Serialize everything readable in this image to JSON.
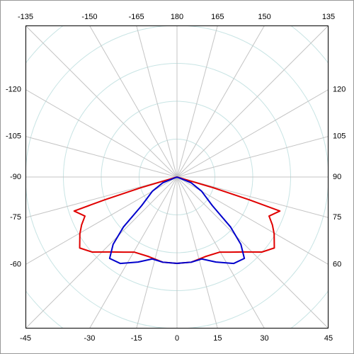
{
  "chart_data": {
    "type": "polar",
    "rlim": [
      0,
      400
    ],
    "rticks": [
      100,
      200,
      300,
      400,
      500
    ],
    "thetaticks": [
      -165,
      -150,
      -135,
      -120,
      -105,
      -90,
      -75,
      -60,
      -45,
      -30,
      -15,
      0,
      15,
      30,
      45,
      60,
      75,
      90,
      105,
      120,
      135,
      150,
      165,
      180
    ],
    "grid": true,
    "series": [
      {
        "color": "#e00000",
        "x": [
          -90,
          -73.5,
          -72.5,
          -71.7,
          -67,
          -63.3,
          -59.7,
          -53.9,
          -48.5,
          -41.9,
          -35.3,
          -29.5,
          -19.6,
          -9.5,
          0,
          9.5,
          19.6,
          29.5,
          35.3,
          41.9,
          48.5,
          53.9,
          59.7,
          63.3,
          67,
          71.7,
          72.5,
          73.5,
          90
        ],
        "values": [
          0,
          100,
          200,
          286,
          264,
          282,
          297,
          318,
          299,
          266,
          243,
          228,
          223,
          228,
          228,
          228,
          223,
          228,
          243,
          266,
          299,
          318,
          297,
          282,
          264,
          286,
          200,
          100,
          0
        ]
      },
      {
        "color": "#0000cc",
        "x": [
          -90,
          -68,
          -60,
          -51,
          -47,
          -43.5,
          -39.6,
          -33.3,
          -24.6,
          -16.8,
          -9.5,
          0,
          9.5,
          16.8,
          24.6,
          33.3,
          39.6,
          43.5,
          47,
          51,
          60,
          68,
          90
        ],
        "values": [
          0,
          40,
          75,
          120,
          193,
          245,
          279,
          273,
          247,
          226,
          228,
          228,
          228,
          226,
          247,
          273,
          279,
          245,
          193,
          120,
          75,
          40,
          0
        ]
      }
    ]
  }
}
